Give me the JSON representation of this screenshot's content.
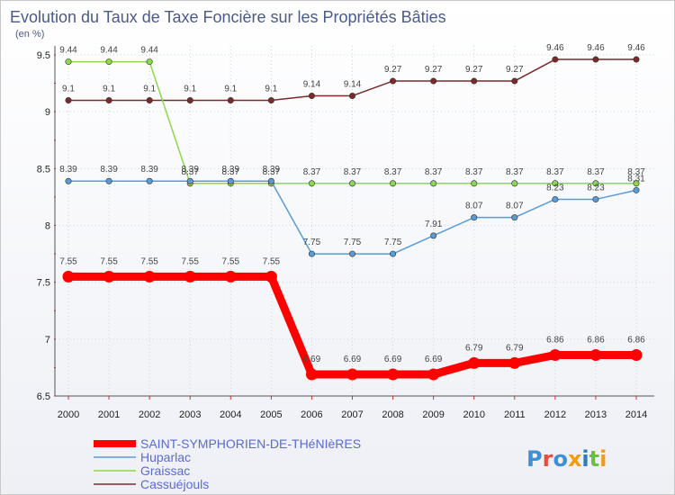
{
  "chart_data": {
    "type": "line",
    "title": "Evolution du Taux de Taxe Foncière sur les Propriétés Bâties",
    "ylabel": "(en %)",
    "xlabel": "",
    "ylim": [
      6.5,
      9.5
    ],
    "yticks": [
      "6.5",
      "7",
      "7.5",
      "8",
      "8.5",
      "9",
      "9.5"
    ],
    "x": [
      "2000",
      "2001",
      "2002",
      "2003",
      "2004",
      "2005",
      "2006",
      "2007",
      "2008",
      "2009",
      "2010",
      "2011",
      "2012",
      "2013",
      "2014"
    ],
    "grid": true,
    "legend_position": "bottom-left",
    "series": [
      {
        "name": "SAINT-SYMPHORIEN-DE-THéNIèRES",
        "color": "#ff0000",
        "values": [
          7.55,
          7.55,
          7.55,
          7.55,
          7.55,
          7.55,
          6.69,
          6.69,
          6.69,
          6.69,
          6.79,
          6.79,
          6.86,
          6.86,
          6.86
        ],
        "labels": [
          "7.55",
          "7.55",
          "7.55",
          "7.55",
          "7.55",
          "7.55",
          "6.69",
          "6.69",
          "6.69",
          "6.69",
          "6.79",
          "6.79",
          "6.86",
          "6.86",
          "6.86"
        ]
      },
      {
        "name": "Huparlac",
        "color": "#5b9bd5",
        "values": [
          8.39,
          8.39,
          8.39,
          8.39,
          8.39,
          8.39,
          7.75,
          7.75,
          7.75,
          7.91,
          8.07,
          8.07,
          8.23,
          8.23,
          8.31
        ],
        "labels": [
          "8.39",
          "8.39",
          "8.39",
          "8.39",
          "8.39",
          "8.39",
          "7.75",
          "7.75",
          "7.75",
          "7.91",
          "8.07",
          "8.07",
          "8.23",
          "8.23",
          "8.31"
        ]
      },
      {
        "name": "Graissac",
        "color": "#8fd84a",
        "values": [
          9.44,
          9.44,
          9.44,
          8.37,
          8.37,
          8.37,
          8.37,
          8.37,
          8.37,
          8.37,
          8.37,
          8.37,
          8.37,
          8.37,
          8.37
        ],
        "labels": [
          "9.44",
          "9.44",
          "9.44",
          "8.37",
          "8.37",
          "8.37",
          "8.37",
          "8.37",
          "8.37",
          "8.37",
          "8.37",
          "8.37",
          "8.37",
          "8.37",
          "8.37"
        ]
      },
      {
        "name": "Cassuéjouls",
        "color": "#7a2a2a",
        "values": [
          9.1,
          9.1,
          9.1,
          9.1,
          9.1,
          9.1,
          9.14,
          9.14,
          9.27,
          9.27,
          9.27,
          9.27,
          9.46,
          9.46,
          9.46
        ],
        "labels": [
          "9.1",
          "9.1",
          "9.1",
          "9.1",
          "9.1",
          "9.1",
          "9.14",
          "9.14",
          "9.27",
          "9.27",
          "9.27",
          "9.27",
          "9.46",
          "9.46",
          "9.46"
        ]
      }
    ]
  },
  "logo": {
    "text": "Proxiti"
  }
}
